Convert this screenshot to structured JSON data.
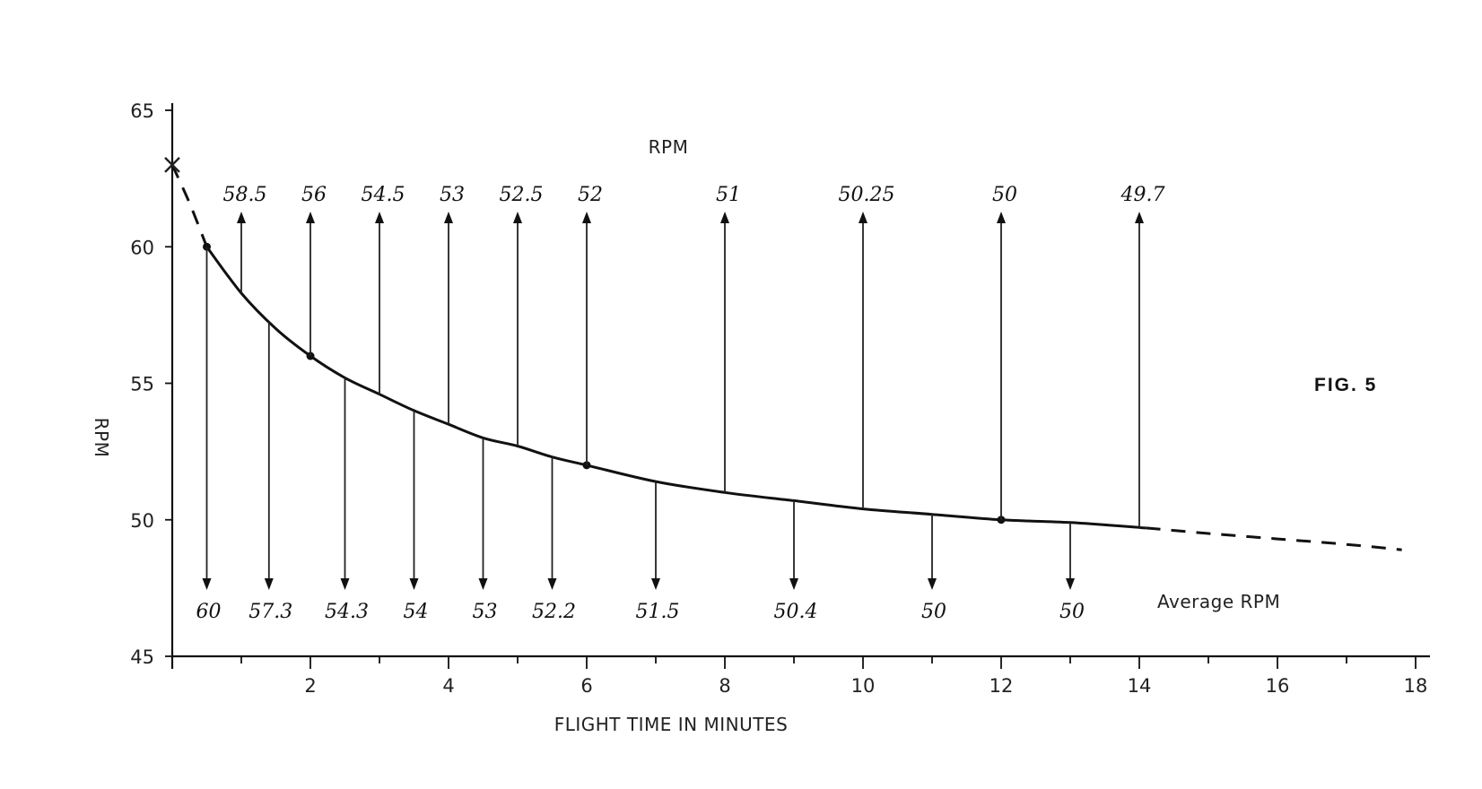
{
  "chart_data": {
    "type": "line",
    "title": "RPM",
    "fig_label": "FIG. 5",
    "xlabel": "FLIGHT TIME IN MINUTES",
    "ylabel": "RPM",
    "xlim": [
      0,
      18
    ],
    "ylim": [
      45,
      65
    ],
    "x_ticks": [
      2,
      4,
      6,
      8,
      10,
      12,
      14,
      16,
      18
    ],
    "x_minor_ticks": [
      1,
      3,
      5,
      7,
      9,
      11,
      13,
      15,
      17
    ],
    "y_ticks": [
      45,
      50,
      55,
      60,
      65
    ],
    "start_marker": {
      "x": 0,
      "y": 63
    },
    "curve_points": [
      {
        "x": 0,
        "y": 63
      },
      {
        "x": 0.25,
        "y": 61.6
      },
      {
        "x": 0.5,
        "y": 60
      },
      {
        "x": 1,
        "y": 58.3
      },
      {
        "x": 1.5,
        "y": 57
      },
      {
        "x": 2,
        "y": 56
      },
      {
        "x": 2.5,
        "y": 55.2
      },
      {
        "x": 3,
        "y": 54.6
      },
      {
        "x": 3.5,
        "y": 54
      },
      {
        "x": 4,
        "y": 53.5
      },
      {
        "x": 4.5,
        "y": 53
      },
      {
        "x": 5,
        "y": 52.7
      },
      {
        "x": 5.5,
        "y": 52.3
      },
      {
        "x": 6,
        "y": 52
      },
      {
        "x": 7,
        "y": 51.4
      },
      {
        "x": 8,
        "y": 51
      },
      {
        "x": 9,
        "y": 50.7
      },
      {
        "x": 10,
        "y": 50.4
      },
      {
        "x": 11,
        "y": 50.2
      },
      {
        "x": 12,
        "y": 50
      },
      {
        "x": 13,
        "y": 49.9
      },
      {
        "x": 14.1,
        "y": 49.7
      },
      {
        "x": 15,
        "y": 49.5
      },
      {
        "x": 16,
        "y": 49.3
      },
      {
        "x": 17,
        "y": 49.1
      },
      {
        "x": 17.8,
        "y": 48.9
      }
    ],
    "solid_range": [
      0.5,
      14.1
    ],
    "marked_points": [
      {
        "x": 0.5,
        "y": 60
      },
      {
        "x": 2,
        "y": 56
      },
      {
        "x": 6,
        "y": 52
      },
      {
        "x": 12,
        "y": 50
      }
    ],
    "series": [
      {
        "name": "RPM",
        "points": [
          {
            "x": 1,
            "y": 58.5,
            "label": "58.5"
          },
          {
            "x": 2,
            "y": 56,
            "label": "56"
          },
          {
            "x": 3,
            "y": 54.5,
            "label": "54.5"
          },
          {
            "x": 4,
            "y": 53,
            "label": "53"
          },
          {
            "x": 5,
            "y": 52.5,
            "label": "52.5"
          },
          {
            "x": 6,
            "y": 52,
            "label": "52"
          },
          {
            "x": 8,
            "y": 51,
            "label": "51"
          },
          {
            "x": 10,
            "y": 50.25,
            "label": "50.25"
          },
          {
            "x": 12,
            "y": 50,
            "label": "50"
          },
          {
            "x": 14,
            "y": 49.7,
            "label": "49.7"
          }
        ]
      },
      {
        "name": "Average RPM",
        "points": [
          {
            "x": 0.5,
            "y": 60,
            "label": "60"
          },
          {
            "x": 1.4,
            "y": 57.3,
            "label": "57.3"
          },
          {
            "x": 2.5,
            "y": 54.3,
            "label": "54.3"
          },
          {
            "x": 3.5,
            "y": 54,
            "label": "54"
          },
          {
            "x": 4.5,
            "y": 53,
            "label": "53"
          },
          {
            "x": 5.5,
            "y": 52.2,
            "label": "52.2"
          },
          {
            "x": 7,
            "y": 51.5,
            "label": "51.5"
          },
          {
            "x": 9,
            "y": 50.4,
            "label": "50.4"
          },
          {
            "x": 11,
            "y": 50,
            "label": "50"
          },
          {
            "x": 13,
            "y": 50,
            "label": "50"
          }
        ]
      }
    ]
  }
}
